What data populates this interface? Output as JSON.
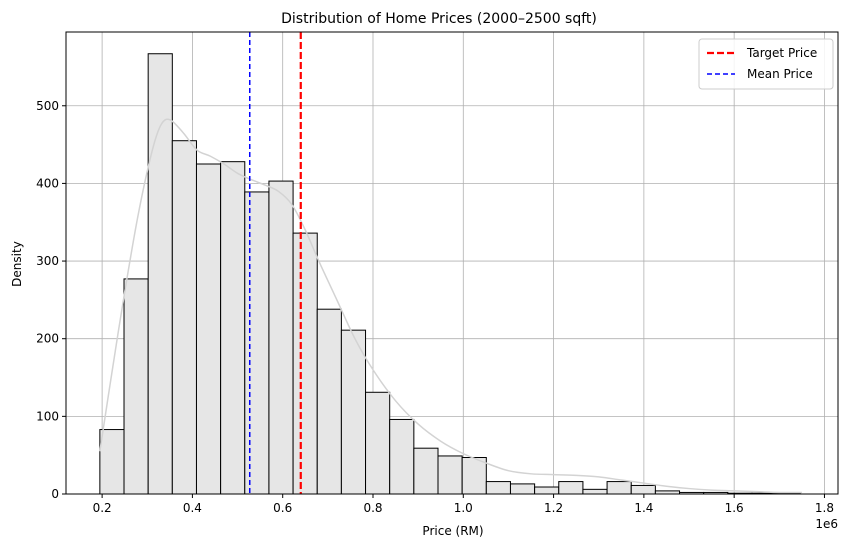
{
  "chart_data": {
    "type": "bar",
    "title": "Distribution of Home Prices (2000–2500 sqft)",
    "xlabel": "Price (RM)",
    "ylabel": "Density",
    "x_offset_text": "1e6",
    "xlim": [
      0.12,
      1.83
    ],
    "ylim": [
      0,
      595
    ],
    "x_ticks": [
      0.2,
      0.4,
      0.6,
      0.8,
      1.0,
      1.2,
      1.4,
      1.6,
      1.8
    ],
    "x_tick_labels": [
      "0.2",
      "0.4",
      "0.6",
      "0.8",
      "1.0",
      "1.2",
      "1.4",
      "1.6",
      "1.8"
    ],
    "y_ticks": [
      0,
      100,
      200,
      300,
      400,
      500
    ],
    "y_tick_labels": [
      "0",
      "100",
      "200",
      "300",
      "400",
      "500"
    ],
    "grid": true,
    "bin_edges": [
      0.195,
      0.2485,
      0.302,
      0.3555,
      0.409,
      0.4625,
      0.516,
      0.5695,
      0.623,
      0.6765,
      0.73,
      0.7835,
      0.837,
      0.8905,
      0.944,
      0.9975,
      1.051,
      1.1045,
      1.158,
      1.2115,
      1.265,
      1.3185,
      1.372,
      1.4255,
      1.479,
      1.5325,
      1.586,
      1.6395,
      1.693,
      1.7465
    ],
    "values": [
      83,
      277,
      567,
      455,
      425,
      428,
      389,
      403,
      336,
      238,
      211,
      131,
      96,
      59,
      49,
      47,
      16,
      13,
      9,
      16,
      6,
      16,
      11,
      4,
      2,
      2,
      1,
      1,
      1
    ],
    "kde": {
      "x": [
        0.195,
        0.22,
        0.25,
        0.28,
        0.31,
        0.33,
        0.35,
        0.38,
        0.41,
        0.44,
        0.47,
        0.5,
        0.53,
        0.56,
        0.59,
        0.62,
        0.65,
        0.68,
        0.72,
        0.76,
        0.8,
        0.85,
        0.9,
        0.95,
        1.0,
        1.05,
        1.1,
        1.15,
        1.2,
        1.25,
        1.3,
        1.35,
        1.4,
        1.45,
        1.5,
        1.55,
        1.6,
        1.65,
        1.7,
        1.75
      ],
      "y": [
        55,
        150,
        260,
        360,
        440,
        475,
        482,
        465,
        443,
        435,
        425,
        413,
        405,
        398,
        390,
        373,
        340,
        300,
        250,
        200,
        160,
        120,
        90,
        68,
        52,
        40,
        30,
        26,
        25,
        24,
        22,
        18,
        14,
        10,
        7,
        5,
        4,
        3,
        2,
        2
      ],
      "color": "#d3d3d3"
    },
    "reference_lines": [
      {
        "name": "Target Price",
        "x": 0.64,
        "color": "#ff0000",
        "style": "dashed"
      },
      {
        "name": "Mean Price",
        "x": 0.527,
        "color": "#0000ff",
        "style": "dashed"
      }
    ],
    "bar_color": "#e6e6e6",
    "bar_edge_color": "#000000",
    "legend_placement": "top-right"
  }
}
